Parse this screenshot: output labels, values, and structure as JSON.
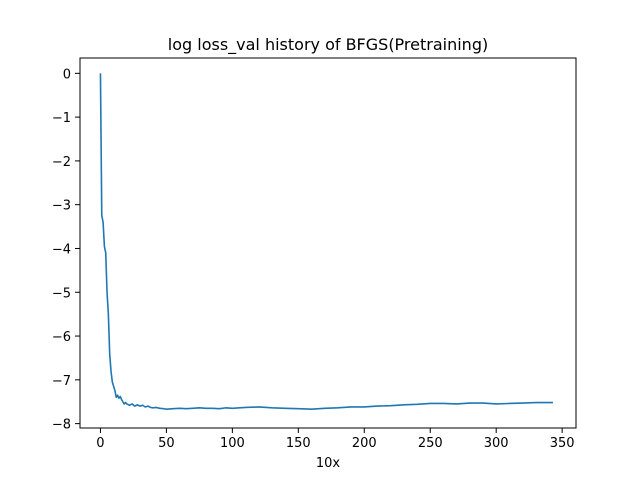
{
  "chart_data": {
    "type": "line",
    "title": "log loss_val history of BFGS(Pretraining)",
    "xlabel": "10x",
    "ylabel": "",
    "xlim": [
      -15.5,
      360.5
    ],
    "ylim": [
      -8.1,
      0.35
    ],
    "xticks": [
      0,
      50,
      100,
      150,
      200,
      250,
      300,
      350
    ],
    "yticks": [
      0,
      -1,
      -2,
      -3,
      -4,
      -5,
      -6,
      -7,
      -8
    ],
    "ytick_labels": [
      "0",
      "−1",
      "−2",
      "−3",
      "−4",
      "−5",
      "−6",
      "−7",
      "−8"
    ],
    "grid": false,
    "line_color": "#1f77b4",
    "series": [
      {
        "x": [
          0,
          1,
          2,
          3,
          4,
          5,
          6,
          7,
          8,
          9,
          10,
          11,
          12,
          13,
          14,
          15,
          16,
          17,
          18,
          19,
          20,
          22,
          24,
          26,
          28,
          30,
          32,
          34,
          36,
          38,
          40,
          42,
          45,
          48,
          50,
          55,
          60,
          65,
          70,
          75,
          80,
          85,
          90,
          95,
          100,
          110,
          120,
          130,
          140,
          150,
          160,
          170,
          180,
          190,
          200,
          210,
          220,
          230,
          240,
          250,
          260,
          270,
          280,
          290,
          300,
          310,
          320,
          330,
          343
        ],
        "values": [
          0.0,
          -3.25,
          -3.4,
          -3.95,
          -4.1,
          -5.0,
          -5.5,
          -6.4,
          -6.8,
          -7.05,
          -7.15,
          -7.25,
          -7.4,
          -7.35,
          -7.42,
          -7.38,
          -7.45,
          -7.5,
          -7.55,
          -7.52,
          -7.55,
          -7.58,
          -7.55,
          -7.6,
          -7.57,
          -7.6,
          -7.58,
          -7.62,
          -7.6,
          -7.63,
          -7.64,
          -7.63,
          -7.65,
          -7.66,
          -7.67,
          -7.66,
          -7.65,
          -7.66,
          -7.65,
          -7.64,
          -7.65,
          -7.65,
          -7.66,
          -7.64,
          -7.65,
          -7.63,
          -7.62,
          -7.64,
          -7.65,
          -7.66,
          -7.67,
          -7.65,
          -7.64,
          -7.62,
          -7.62,
          -7.6,
          -7.59,
          -7.57,
          -7.56,
          -7.54,
          -7.54,
          -7.55,
          -7.53,
          -7.53,
          -7.55,
          -7.54,
          -7.53,
          -7.52,
          -7.52
        ]
      }
    ]
  }
}
